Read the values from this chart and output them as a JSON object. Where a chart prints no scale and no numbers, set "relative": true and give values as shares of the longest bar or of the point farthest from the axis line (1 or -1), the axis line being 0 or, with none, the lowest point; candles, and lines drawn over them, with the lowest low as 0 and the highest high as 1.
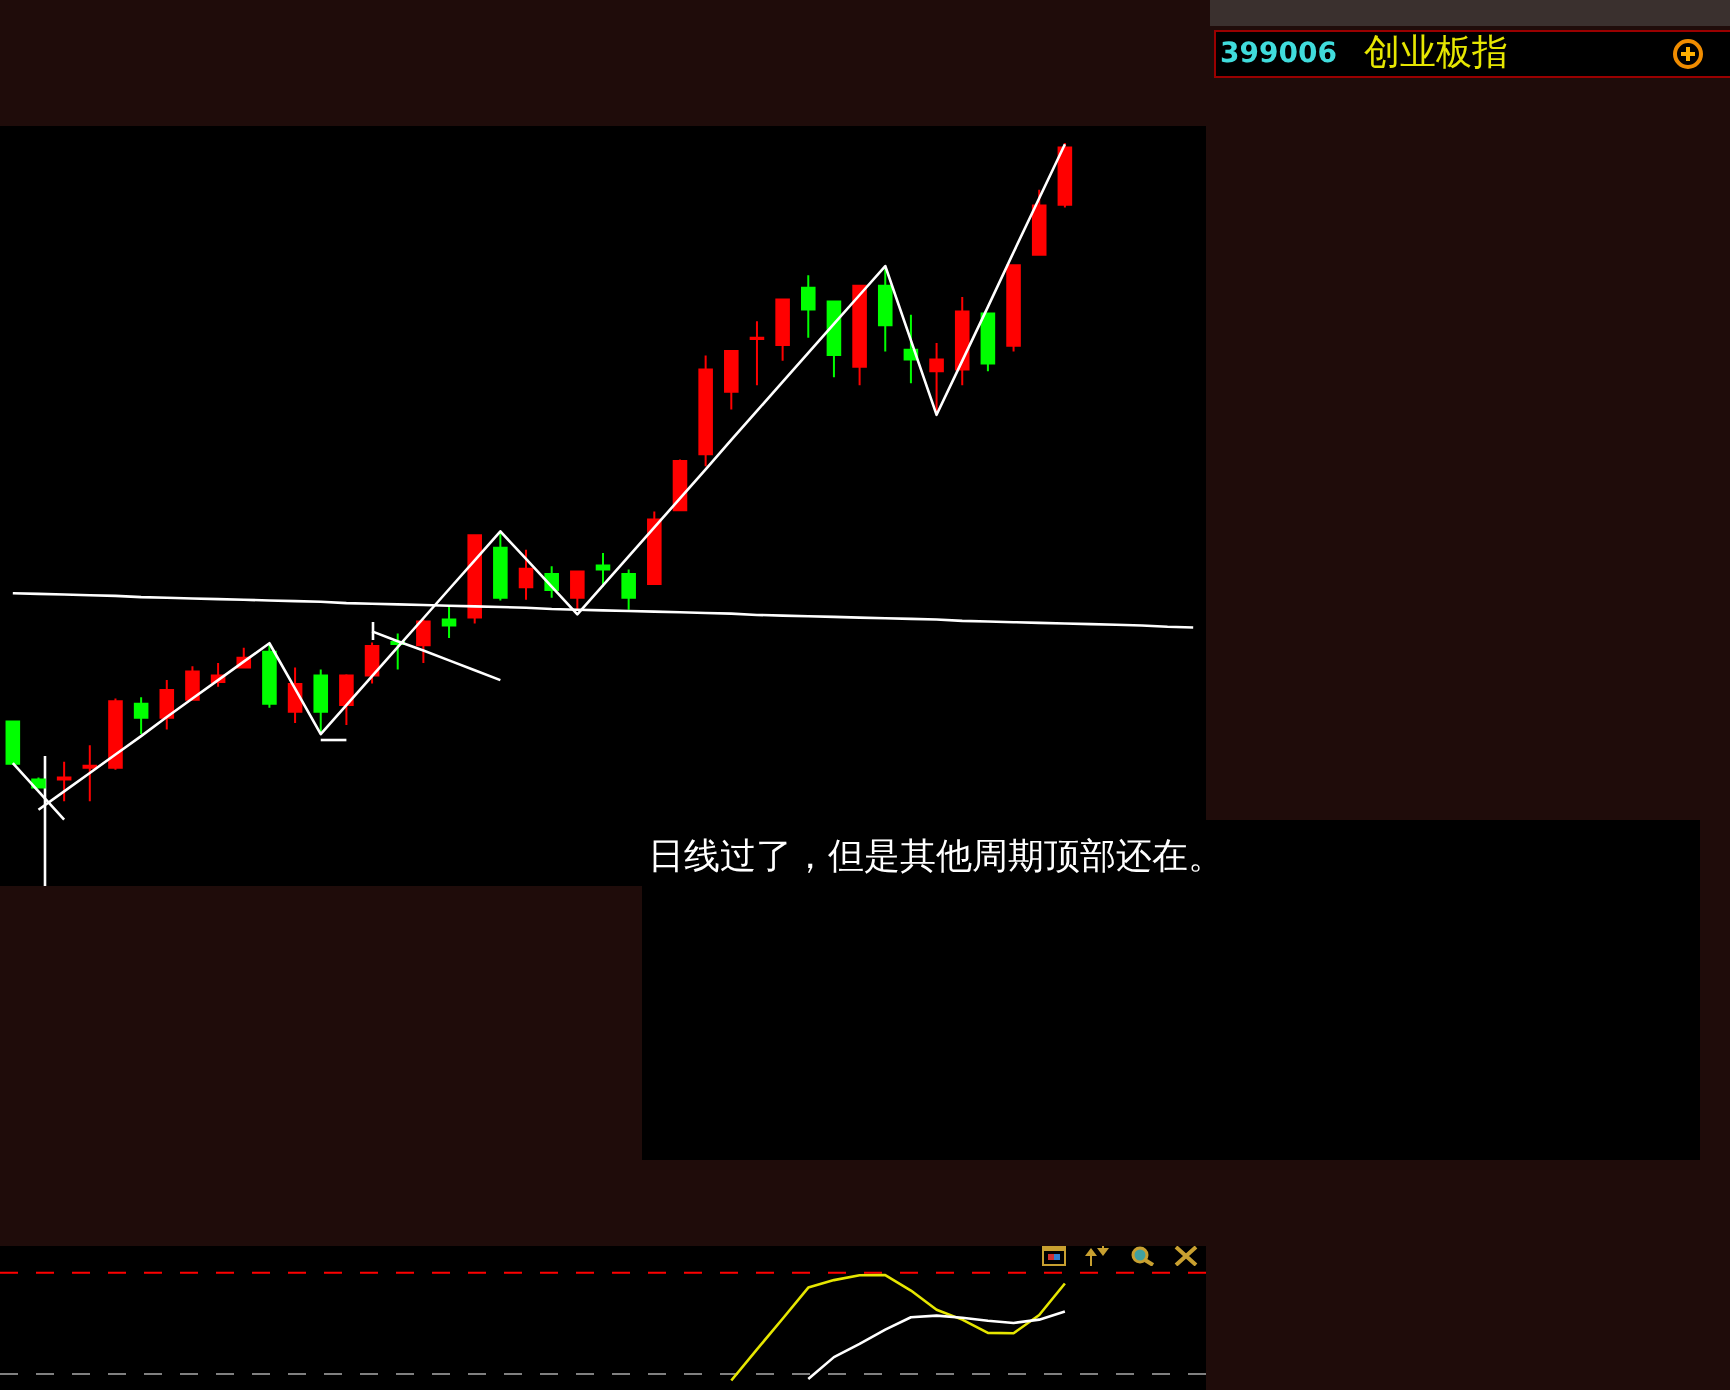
{
  "chart_data": [
    {
      "type": "other",
      "title": "创业板指",
      "subtitle": "399006"
    },
    {
      "type": "candlestick",
      "annotations": [
        "日线过了，但是其他周期顶部还在。"
      ],
      "relative": true,
      "categories": [
        null,
        null,
        null,
        null,
        null,
        null,
        null,
        null,
        null,
        null,
        null,
        null,
        null,
        null,
        null,
        null,
        null,
        null,
        null,
        null,
        null,
        null,
        null,
        null,
        null,
        null,
        null,
        null,
        null,
        null,
        null,
        null,
        null,
        null,
        null,
        null,
        null,
        null,
        null,
        null,
        null,
        null,
        null,
        null,
        null,
        null,
        null
      ],
      "ohlc": [
        [
          0.121,
          0.121,
          0.057,
          0.057
        ],
        [
          0.033,
          0.036,
          0.02,
          0.021
        ],
        [
          0.033,
          0.06,
          0,
          0.036
        ],
        [
          0.051,
          0.085,
          0,
          0.054
        ],
        [
          0.051,
          0.156,
          0.048,
          0.152
        ],
        [
          0.148,
          0.158,
          0.102,
          0.127
        ],
        [
          0.127,
          0.184,
          0.109,
          0.169
        ],
        [
          0.154,
          0.205,
          0.154,
          0.197
        ],
        [
          0.181,
          0.21,
          0.174,
          0.191
        ],
        [
          0.203,
          0.233,
          0.203,
          0.218
        ],
        [
          0.227,
          0.24,
          0.142,
          0.148
        ],
        [
          0.136,
          0.203,
          0.119,
          0.178
        ],
        [
          0.191,
          0.2,
          0.102,
          0.136
        ],
        [
          0.146,
          0.193,
          0.116,
          0.191
        ],
        [
          0.191,
          0.241,
          0.179,
          0.236
        ],
        [
          0.242,
          0.255,
          0.2,
          0.239
        ],
        [
          0.237,
          0.276,
          0.21,
          0.273
        ],
        [
          0.276,
          0.296,
          0.248,
          0.267
        ],
        [
          0.279,
          0.404,
          0.27,
          0.404
        ],
        [
          0.385,
          0.41,
          0.305,
          0.309
        ],
        [
          0.325,
          0.382,
          0.306,
          0.353
        ],
        [
          0.345,
          0.357,
          0.309,
          0.321
        ],
        [
          0.309,
          0.349,
          0.291,
          0.349
        ],
        [
          0.358,
          0.377,
          0.326,
          0.352
        ],
        [
          0.345,
          0.352,
          0.291,
          0.309
        ],
        [
          0.33,
          0.44,
          0.33,
          0.428
        ],
        [
          0.442,
          0.519,
          0.442,
          0.517
        ],
        [
          0.527,
          0.677,
          0.509,
          0.656
        ],
        [
          0.622,
          0.684,
          0.595,
          0.684
        ],
        [
          0.702,
          0.729,
          0.632,
          0.704
        ],
        [
          0.693,
          0.762,
          0.669,
          0.762
        ],
        [
          0.78,
          0.799,
          0.704,
          0.747
        ],
        [
          0.759,
          0.759,
          0.644,
          0.678
        ],
        [
          0.66,
          0.783,
          0.632,
          0.783
        ],
        [
          0.783,
          0.811,
          0.683,
          0.723
        ],
        [
          0.686,
          0.739,
          0.635,
          0.671
        ],
        [
          0.653,
          0.696,
          0.59,
          0.671
        ],
        [
          0.656,
          0.766,
          0.632,
          0.744
        ],
        [
          0.741,
          0.741,
          0.653,
          0.665
        ],
        [
          0.692,
          0.814,
          0.683,
          0.814
        ],
        [
          0.83,
          0.929,
          0.83,
          0.905
        ],
        [
          0.906,
          1,
          0.902,
          0.993
        ],
        null,
        null,
        null,
        null,
        null
      ],
      "colors": [
        "#00ff00",
        "#00ff00",
        "#ff0000",
        "#ff0000",
        "#ff0000",
        "#00ff00",
        "#ff0000",
        "#ff0000",
        "#ff0000",
        "#ff0000",
        "#00ff00",
        "#ff0000",
        "#00ff00",
        "#ff0000",
        "#ff0000",
        "#00ff00",
        "#ff0000",
        "#00ff00",
        "#ff0000",
        "#00ff00",
        "#ff0000",
        "#00ff00",
        "#ff0000",
        "#00ff00",
        "#00ff00",
        "#ff0000",
        "#ff0000",
        "#ff0000",
        "#ff0000",
        "#ff0000",
        "#ff0000",
        "#00ff00",
        "#00ff00",
        "#ff0000",
        "#00ff00",
        "#00ff00",
        "#ff0000",
        "#ff0000",
        "#00ff00",
        "#ff0000",
        "#ff0000",
        "#ff0000",
        null,
        null,
        null,
        null,
        null
      ],
      "series": [
        {
          "type": "line",
          "color": "#ffffff",
          "values": [
            0.316,
            0.315,
            0.314,
            0.313,
            0.312,
            0.31,
            0.309,
            0.308,
            0.307,
            0.306,
            0.305,
            0.304,
            0.303,
            0.301,
            0.3,
            0.299,
            0.298,
            0.297,
            0.296,
            0.295,
            0.294,
            0.292,
            0.291,
            0.29,
            0.289,
            0.288,
            0.287,
            0.286,
            0.285,
            0.283,
            0.282,
            0.281,
            0.28,
            0.279,
            0.278,
            0.277,
            0.276,
            0.274,
            0.273,
            0.272,
            0.271,
            0.27,
            0.269,
            0.268,
            0.267,
            0.265,
            0.264
          ]
        },
        {
          "type": "line",
          "color": "#ffffff",
          "values": [
            null,
            -0.013,
            0.015,
            0.043,
            0.071,
            0.099,
            0.128,
            0.156,
            0.184,
            0.212,
            0.24,
            0.171,
            0.102,
            0.146,
            0.19,
            0.234,
            0.278,
            0.322,
            0.366,
            0.41,
            0.368,
            0.326,
            0.284,
            0.328,
            0.372,
            0.416,
            0.46,
            0.504,
            0.549,
            0.593,
            0.637,
            0.681,
            0.725,
            0.769,
            0.813,
            0.7,
            0.587,
            0.669,
            0.751,
            0.834,
            0.916,
            0.998,
            null,
            null,
            null,
            null,
            null
          ]
        },
        {
          "type": "line",
          "color": "#ffffff",
          "values": [
            0.058,
            0.015,
            -0.028,
            null,
            null,
            null,
            null,
            null,
            null,
            null,
            null,
            null,
            null,
            null,
            null,
            null,
            null,
            null,
            null,
            null,
            null,
            null,
            null,
            null,
            null,
            null,
            null,
            null,
            null,
            null,
            null,
            null,
            null,
            null,
            null,
            null,
            null,
            null,
            null,
            null,
            null,
            null,
            null,
            null,
            null,
            null,
            null
          ]
        },
        {
          "type": "line",
          "color": "#ffffff",
          "values": [
            null,
            null,
            null,
            null,
            null,
            null,
            null,
            null,
            null,
            null,
            null,
            null,
            0.093,
            0.093,
            null,
            null,
            null,
            null,
            null,
            null,
            null,
            null,
            null,
            null,
            null,
            null,
            null,
            null,
            null,
            null,
            null,
            null,
            null,
            null,
            null,
            null,
            null,
            null,
            null,
            null,
            null,
            null,
            null,
            null,
            null,
            null,
            null
          ]
        },
        {
          "type": "line",
          "color": "#ffffff",
          "values": [
            null,
            null,
            null,
            null,
            null,
            null,
            null,
            null,
            null,
            null,
            null,
            null,
            null,
            null,
            0.258,
            0.243,
            0.229,
            0.214,
            0.199,
            0.184,
            null,
            null,
            null,
            null,
            null,
            null,
            null,
            null,
            null,
            null,
            null,
            null,
            null,
            null,
            null,
            null,
            null,
            null,
            null,
            null,
            null,
            null,
            null,
            null,
            null,
            null,
            null
          ]
        }
      ]
    },
    {
      "type": "line",
      "relative": true,
      "categories": [
        null,
        null,
        null,
        null,
        null,
        null,
        null,
        null,
        null,
        null,
        null,
        null,
        null,
        null,
        null,
        null,
        null,
        null,
        null,
        null,
        null,
        null,
        null,
        null,
        null,
        null,
        null,
        null,
        null,
        null,
        null,
        null,
        null,
        null,
        null,
        null,
        null,
        null,
        null,
        null,
        null,
        null,
        null,
        null,
        null,
        null,
        null
      ],
      "series": [
        {
          "color": "#e6e600",
          "values": [
            null,
            null,
            null,
            null,
            null,
            null,
            null,
            null,
            null,
            null,
            null,
            null,
            null,
            null,
            null,
            null,
            null,
            null,
            null,
            null,
            null,
            null,
            null,
            null,
            null,
            null,
            null,
            null,
            0.083,
            0.353,
            0.62,
            0.891,
            0.956,
            0.998,
            1,
            0.865,
            0.698,
            0.612,
            0.497,
            0.494,
            0.652,
            0.926,
            null,
            null,
            null,
            null,
            null
          ]
        },
        {
          "color": "#ffffff",
          "values": [
            null,
            null,
            null,
            null,
            null,
            null,
            null,
            null,
            null,
            null,
            null,
            null,
            null,
            null,
            null,
            null,
            null,
            null,
            null,
            null,
            null,
            null,
            null,
            null,
            null,
            null,
            null,
            null,
            null,
            null,
            null,
            0.095,
            0.286,
            0.402,
            0.525,
            0.633,
            0.647,
            0.629,
            0.603,
            0.583,
            0.612,
            0.682,
            null,
            null,
            null,
            null,
            null
          ]
        }
      ],
      "ref_lines": [
        {
          "axis": "y",
          "value": 1.02,
          "color": "#ff0000",
          "line_style": "dashed"
        },
        {
          "axis": "y",
          "value": 0.14,
          "color": "#808080",
          "line_style": "dashed"
        }
      ]
    }
  ]
}
